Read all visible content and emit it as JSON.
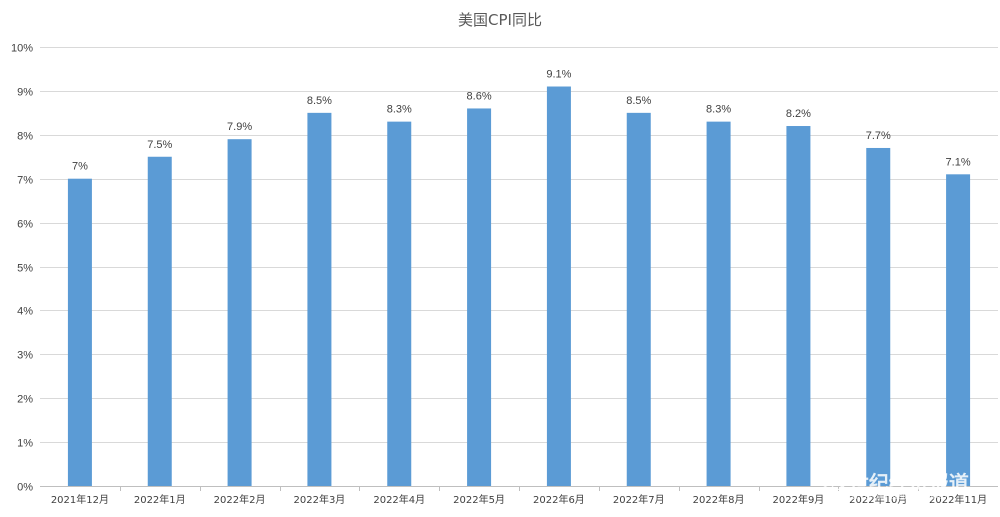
{
  "chart_data": {
    "type": "bar",
    "title": "美国CPI同比",
    "xlabel": "",
    "ylabel": "",
    "categories": [
      "2021年12月",
      "2022年1月",
      "2022年2月",
      "2022年3月",
      "2022年4月",
      "2022年5月",
      "2022年6月",
      "2022年7月",
      "2022年8月",
      "2022年9月",
      "2022年10月",
      "2022年11月"
    ],
    "values": [
      7.0,
      7.5,
      7.9,
      8.5,
      8.3,
      8.6,
      9.1,
      8.5,
      8.3,
      8.2,
      7.7,
      7.1
    ],
    "data_labels": [
      "7%",
      "7.5%",
      "7.9%",
      "8.5%",
      "8.3%",
      "8.6%",
      "9.1%",
      "8.5%",
      "8.3%",
      "8.2%",
      "7.7%",
      "7.1%"
    ],
    "ylim": [
      0,
      10
    ],
    "yticks": [
      0,
      1,
      2,
      3,
      4,
      5,
      6,
      7,
      8,
      9,
      10
    ],
    "ytick_labels": [
      "0%",
      "1%",
      "2%",
      "3%",
      "4%",
      "5%",
      "6%",
      "7%",
      "8%",
      "9%",
      "10%"
    ],
    "grid": true,
    "legend": "none",
    "colors": {
      "bar": "#5b9bd5",
      "grid": "#d9d9d9",
      "text": "#3f3f3f",
      "title": "#595959"
    }
  },
  "watermark": {
    "text": "21世纪经济报道"
  }
}
